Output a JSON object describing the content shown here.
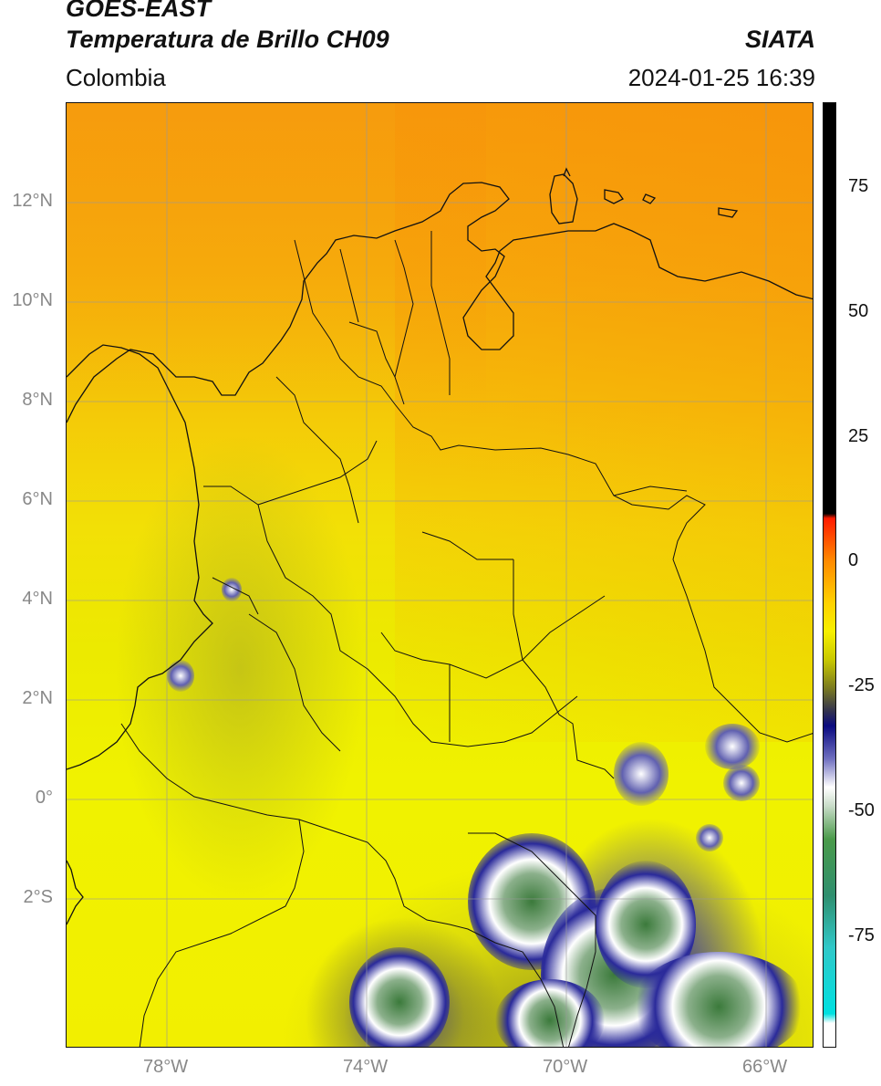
{
  "header": {
    "line1": "GOES-EAST",
    "line2": "Temperatura de Brillo CH09",
    "region": "Colombia",
    "brand": "SIATA",
    "datetime": "2024-01-25 16:39"
  },
  "map": {
    "lat_labels": [
      "12°N",
      "10°N",
      "8°N",
      "6°N",
      "4°N",
      "2°N",
      "0°",
      "2°S"
    ],
    "lon_labels": [
      "78°W",
      "74°W",
      "70°W",
      "66°W"
    ],
    "extent": {
      "lon": [
        -80,
        -65
      ],
      "lat": [
        -5,
        14
      ]
    }
  },
  "colorbar": {
    "ticks": [
      "75",
      "50",
      "25",
      "0",
      "-25",
      "-50",
      "-75"
    ],
    "range": [
      -95,
      90
    ],
    "colors": [
      "#000000",
      "#ff1a00",
      "#f7f000",
      "#0a0a80",
      "#ffffff",
      "#4a9a4a",
      "#00e0e0"
    ]
  }
}
